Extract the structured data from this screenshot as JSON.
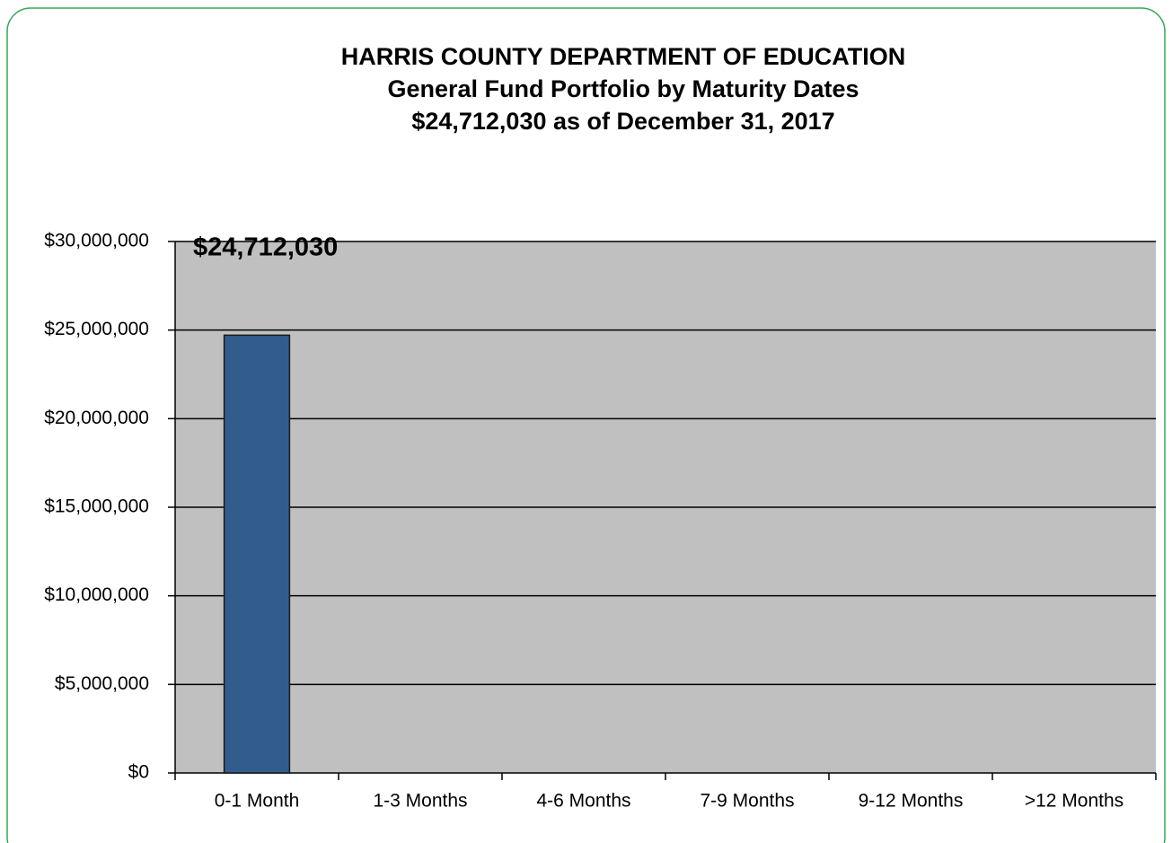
{
  "chart_data": {
    "type": "bar",
    "title": "HARRIS COUNTY DEPARTMENT OF EDUCATION",
    "subtitle": [
      "General Fund Portfolio by Maturity Dates",
      "$24,712,030 as of December 31, 2017"
    ],
    "categories": [
      "0-1 Month",
      "1-3 Months",
      "4-6 Months",
      "7-9 Months",
      "9-12 Months",
      ">12 Months"
    ],
    "values": [
      24712030,
      0,
      0,
      0,
      0,
      0
    ],
    "value_labels": [
      "$24,712,030",
      null,
      null,
      null,
      null,
      null
    ],
    "color": "#335c8e",
    "ylim": [
      0,
      30000000
    ],
    "yticks": [
      {
        "value": 0,
        "label": "$0"
      },
      {
        "value": 5000000,
        "label": "$5,000,000"
      },
      {
        "value": 10000000,
        "label": "$10,000,000"
      },
      {
        "value": 15000000,
        "label": "$15,000,000"
      },
      {
        "value": 20000000,
        "label": "$20,000,000"
      },
      {
        "value": 25000000,
        "label": "$25,000,000"
      },
      {
        "value": 30000000,
        "label": "$30,000,000"
      }
    ],
    "grid": true
  }
}
